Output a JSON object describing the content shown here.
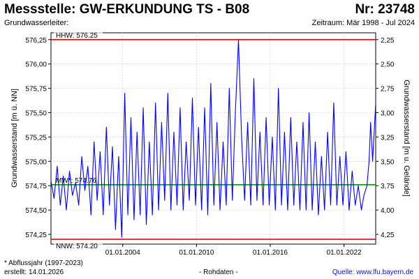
{
  "header": {
    "title": "Messstelle: GW-ERKUNDUNG TS - B08",
    "number": "Nr: 23748",
    "aquifer": "Grundwasserleiter:",
    "period": "Zeitraum: Mär 1998 - Jul 2024"
  },
  "footer": {
    "footnote": "* Abflussjahr (1997-2023)",
    "created": "erstellt:  14.01.2026",
    "status": "- Rohdaten -",
    "source": "Quelle:  www.lfu.bayern.de"
  },
  "colors": {
    "series": "#0000ff",
    "hhw": "#ff0000",
    "nnw": "#ff0000",
    "mw": "#00a000",
    "grid": "#c8c8c8"
  },
  "chart_data": {
    "type": "line",
    "ylabel": "Grundwasserstand [m ü. NN]",
    "y2label": "Grundwasserstand [m u. Gelände]",
    "ylim": [
      574.15,
      576.32
    ],
    "y_ticks": [
      "574,25",
      "574,50",
      "574,75",
      "575,00",
      "575,25",
      "575,50",
      "575,75",
      "576,00",
      "576,25"
    ],
    "y2_ticks": [
      "2,25",
      "2,50",
      "2,75",
      "3,00",
      "3,25",
      "3,50",
      "3,75",
      "4,00",
      "4,25"
    ],
    "y2_offset": 578.5,
    "xlim": [
      "1998-03-01",
      "2024-07-31"
    ],
    "x_ticks": [
      "01.01.2004",
      "01.01.2010",
      "01.01.2016",
      "01.01.2022"
    ],
    "grid": true,
    "reference_lines": [
      {
        "label": "HHW: 576.25",
        "value": 576.25
      },
      {
        "label": "MW*: 574.76",
        "value": 574.76
      },
      {
        "label": "NNW: 574.20",
        "value": 574.2
      }
    ],
    "series": [
      {
        "x": [
          "1998-03-01",
          "1998-06-01",
          "1998-09-01",
          "1998-12-01",
          "1999-03-01",
          "1999-06-01",
          "1999-09-01",
          "1999-12-01",
          "2000-03-01",
          "2000-06-01",
          "2000-09-01",
          "2000-12-01",
          "2001-03-01",
          "2001-06-01",
          "2001-09-01",
          "2001-12-01",
          "2002-03-01",
          "2002-06-01",
          "2002-09-01",
          "2002-12-01",
          "2003-03-01",
          "2003-06-01",
          "2003-09-01",
          "2003-12-01",
          "2004-03-01",
          "2004-06-01",
          "2004-09-01",
          "2004-12-01",
          "2005-03-01",
          "2005-06-01",
          "2005-09-01",
          "2005-12-01",
          "2006-03-01",
          "2006-06-01",
          "2006-09-01",
          "2006-12-01",
          "2007-03-01",
          "2007-06-01",
          "2007-09-01",
          "2007-12-01",
          "2008-03-01",
          "2008-06-01",
          "2008-09-01",
          "2008-12-01",
          "2009-03-01",
          "2009-06-01",
          "2009-09-01",
          "2009-12-01",
          "2010-03-01",
          "2010-06-01",
          "2010-09-01",
          "2010-12-01",
          "2011-03-01",
          "2011-06-01",
          "2011-09-01",
          "2011-12-01",
          "2012-03-01",
          "2012-06-01",
          "2012-09-01",
          "2012-12-01",
          "2013-03-01",
          "2013-06-01",
          "2013-09-01",
          "2013-12-01",
          "2014-03-01",
          "2014-06-01",
          "2014-09-01",
          "2014-12-01",
          "2015-03-01",
          "2015-06-01",
          "2015-09-01",
          "2015-12-01",
          "2016-03-01",
          "2016-06-01",
          "2016-09-01",
          "2016-12-01",
          "2017-03-01",
          "2017-06-01",
          "2017-09-01",
          "2017-12-01",
          "2018-03-01",
          "2018-06-01",
          "2018-09-01",
          "2018-12-01",
          "2019-03-01",
          "2019-06-01",
          "2019-09-01",
          "2019-12-01",
          "2020-03-01",
          "2020-06-01",
          "2020-09-01",
          "2020-12-01",
          "2021-03-01",
          "2021-06-01",
          "2021-09-01",
          "2021-12-01",
          "2022-03-01",
          "2022-06-01",
          "2022-09-01",
          "2022-12-01",
          "2023-03-01",
          "2023-06-01",
          "2023-08-15",
          "2023-11-15",
          "2024-01-15",
          "2024-03-01",
          "2024-05-01",
          "2024-07-31"
        ],
        "values": [
          574.8,
          574.62,
          574.95,
          574.55,
          574.85,
          574.5,
          574.9,
          574.65,
          574.78,
          574.55,
          575.05,
          574.7,
          574.95,
          574.45,
          575.2,
          574.6,
          575.1,
          574.45,
          575.35,
          574.55,
          575.15,
          574.3,
          575.05,
          574.22,
          575.7,
          574.45,
          575.45,
          574.4,
          575.3,
          574.45,
          575.55,
          574.35,
          575.2,
          574.45,
          575.6,
          574.5,
          575.4,
          574.6,
          575.7,
          574.5,
          575.3,
          574.55,
          575.55,
          574.5,
          575.2,
          574.6,
          575.65,
          574.55,
          575.35,
          574.5,
          575.55,
          574.45,
          575.8,
          574.55,
          575.4,
          574.5,
          575.2,
          574.55,
          575.75,
          574.6,
          575.5,
          576.25,
          575.25,
          574.6,
          575.4,
          574.55,
          575.85,
          574.6,
          575.3,
          574.55,
          575.45,
          574.55,
          575.25,
          574.5,
          575.75,
          574.55,
          575.3,
          574.5,
          575.45,
          574.55,
          575.2,
          574.5,
          575.4,
          574.5,
          575.5,
          574.5,
          575.2,
          574.45,
          575.05,
          574.5,
          575.3,
          574.55,
          575.6,
          574.55,
          575.05,
          574.55,
          575.1,
          574.5,
          574.9,
          574.55,
          574.75,
          574.5,
          574.65,
          574.75,
          575.0,
          575.4,
          575.0,
          575.6
        ]
      }
    ]
  }
}
